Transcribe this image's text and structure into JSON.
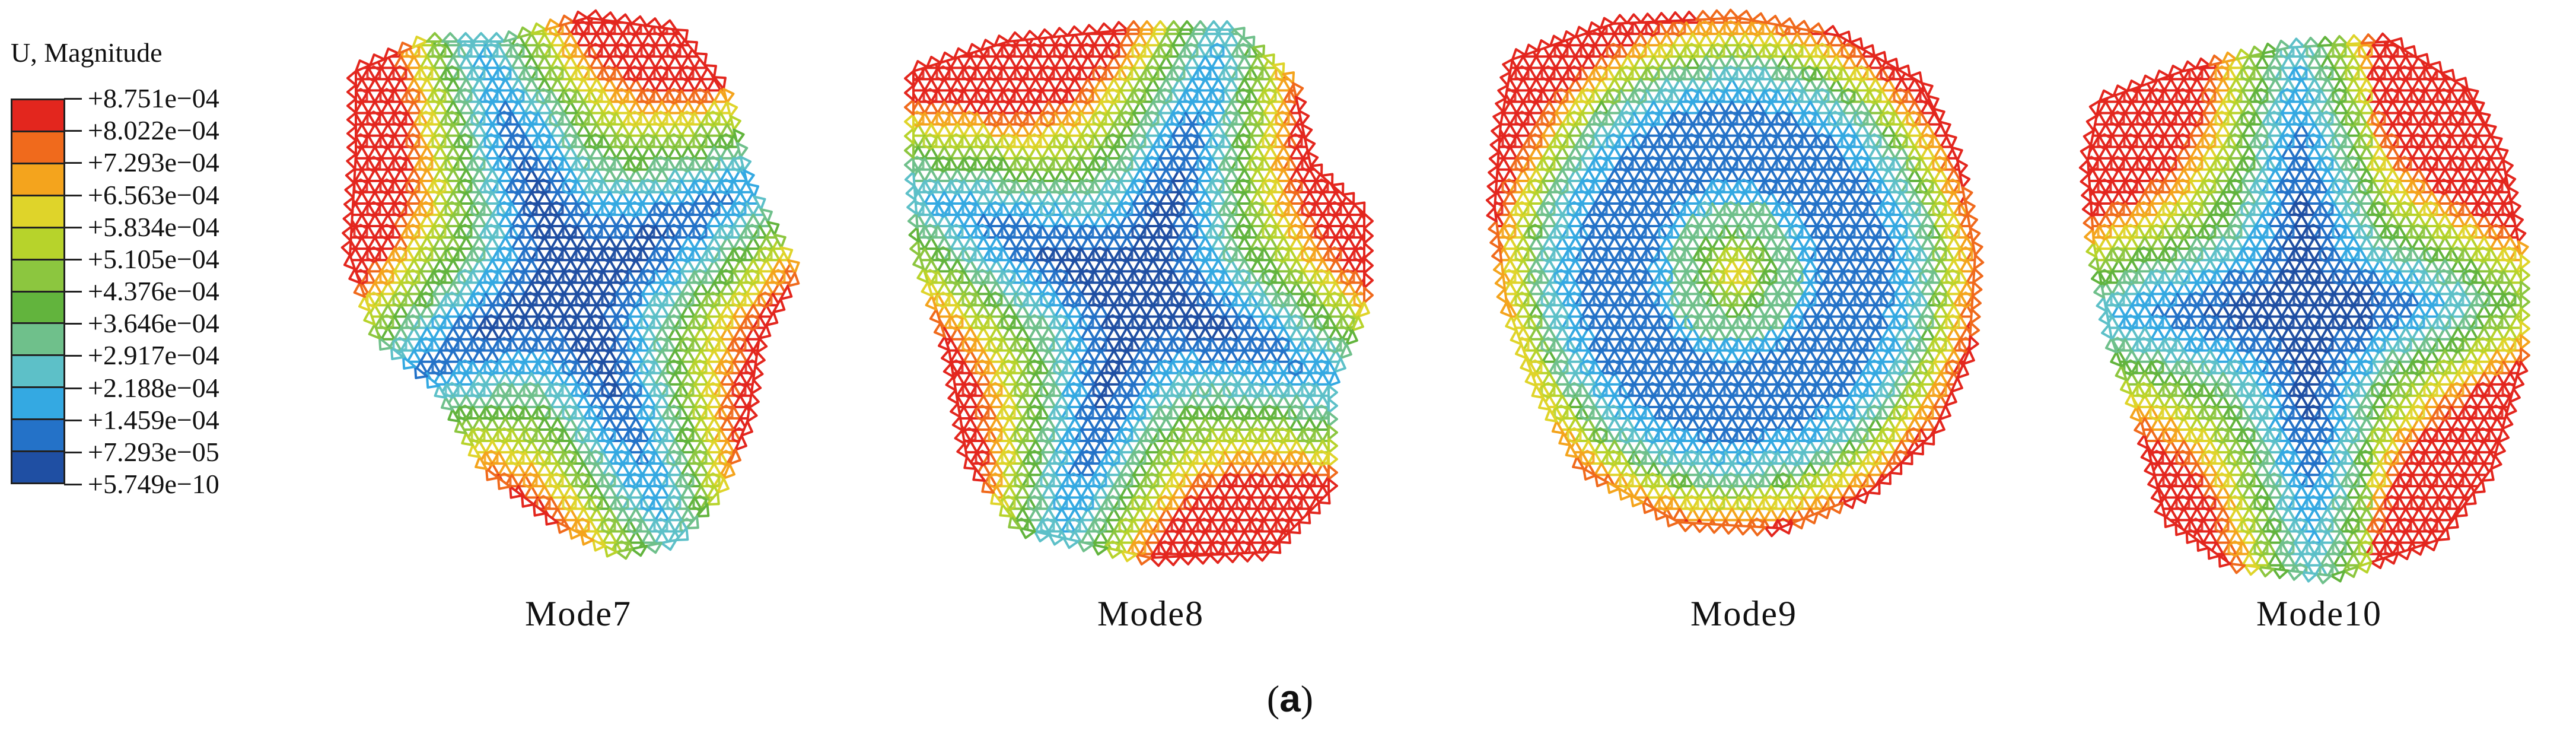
{
  "legend": {
    "title": "U, Magnitude",
    "labels": [
      "+8.751e−04",
      "+8.022e−04",
      "+7.293e−04",
      "+6.563e−04",
      "+5.834e−04",
      "+5.105e−04",
      "+4.376e−04",
      "+3.646e−04",
      "+2.917e−04",
      "+2.188e−04",
      "+1.459e−04",
      "+7.293e−05",
      "+5.749e−10"
    ],
    "colors": [
      "#e3261e",
      "#f06a1c",
      "#f4a41d",
      "#dfd42a",
      "#b7d32b",
      "#8cc63f",
      "#62b43d",
      "#6fc08b",
      "#5dc0c8",
      "#34a9e2",
      "#2472c8",
      "#1f4fa3"
    ]
  },
  "modes": [
    {
      "caption": "Mode7",
      "pattern": "four-lobe"
    },
    {
      "caption": "Mode8",
      "pattern": "four-lobe-rotated"
    },
    {
      "caption": "Mode9",
      "pattern": "ring"
    },
    {
      "caption": "Mode10",
      "pattern": "four-lobe-asymmetric"
    }
  ],
  "figure_label": "a"
}
